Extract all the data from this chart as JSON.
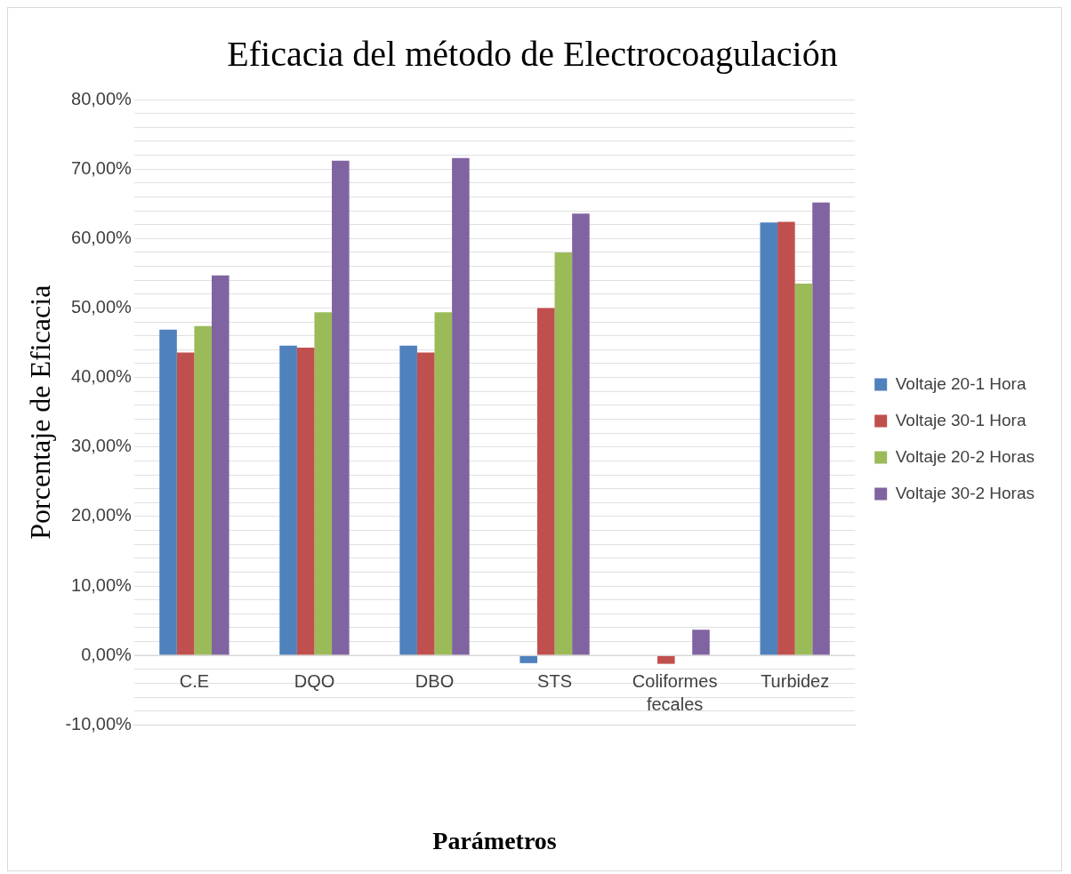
{
  "chart_data": {
    "type": "bar",
    "title": "Eficacia del método de Electrocoagulación",
    "xlabel": "Parámetros",
    "ylabel": "Porcentaje de Eficacia",
    "categories": [
      "C.E",
      "DQO",
      "DBO",
      "STS",
      "Coliformes fecales",
      "Turbidez"
    ],
    "series": [
      {
        "name": "Voltaje 20-1 Hora",
        "color": "#4f81bd",
        "values": [
          46.9,
          44.6,
          44.6,
          -1.1,
          0,
          62.3
        ]
      },
      {
        "name": "Voltaje 30-1 Hora",
        "color": "#c0504d",
        "values": [
          43.6,
          44.3,
          43.6,
          50.0,
          -1.2,
          62.4
        ]
      },
      {
        "name": "Voltaje 20-2 Horas",
        "color": "#9bbb59",
        "values": [
          47.4,
          49.4,
          49.4,
          58.0,
          0,
          53.5
        ]
      },
      {
        "name": "Voltaje 30-2 Horas",
        "color": "#8064a2",
        "values": [
          54.7,
          71.2,
          71.6,
          63.6,
          3.7,
          65.2
        ]
      }
    ],
    "ylim": [
      -10,
      80
    ],
    "yticks": [
      {
        "value": -10,
        "label": "-10,00%"
      },
      {
        "value": -8,
        "label": null
      },
      {
        "value": -6,
        "label": null
      },
      {
        "value": -4,
        "label": null
      },
      {
        "value": -2,
        "label": null
      },
      {
        "value": 0,
        "label": "0,00%"
      },
      {
        "value": 2,
        "label": null
      },
      {
        "value": 4,
        "label": null
      },
      {
        "value": 6,
        "label": null
      },
      {
        "value": 8,
        "label": null
      },
      {
        "value": 10,
        "label": "10,00%"
      },
      {
        "value": 12,
        "label": null
      },
      {
        "value": 14,
        "label": null
      },
      {
        "value": 16,
        "label": null
      },
      {
        "value": 18,
        "label": null
      },
      {
        "value": 20,
        "label": "20,00%"
      },
      {
        "value": 22,
        "label": null
      },
      {
        "value": 24,
        "label": null
      },
      {
        "value": 26,
        "label": null
      },
      {
        "value": 28,
        "label": null
      },
      {
        "value": 30,
        "label": "30,00%"
      },
      {
        "value": 32,
        "label": null
      },
      {
        "value": 34,
        "label": null
      },
      {
        "value": 36,
        "label": null
      },
      {
        "value": 38,
        "label": null
      },
      {
        "value": 40,
        "label": "40,00%"
      },
      {
        "value": 42,
        "label": null
      },
      {
        "value": 44,
        "label": null
      },
      {
        "value": 46,
        "label": null
      },
      {
        "value": 48,
        "label": null
      },
      {
        "value": 50,
        "label": "50,00%"
      },
      {
        "value": 52,
        "label": null
      },
      {
        "value": 54,
        "label": null
      },
      {
        "value": 56,
        "label": null
      },
      {
        "value": 58,
        "label": null
      },
      {
        "value": 60,
        "label": "60,00%"
      },
      {
        "value": 62,
        "label": null
      },
      {
        "value": 64,
        "label": null
      },
      {
        "value": 66,
        "label": null
      },
      {
        "value": 68,
        "label": null
      },
      {
        "value": 70,
        "label": "70,00%"
      },
      {
        "value": 72,
        "label": null
      },
      {
        "value": 74,
        "label": null
      },
      {
        "value": 76,
        "label": null
      },
      {
        "value": 78,
        "label": null
      },
      {
        "value": 80,
        "label": "80,00%"
      }
    ],
    "grid": "y",
    "legend": "right"
  }
}
